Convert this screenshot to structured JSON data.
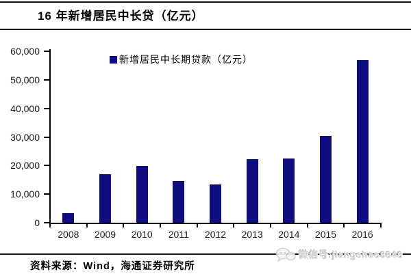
{
  "title": "16 年新增居民中长贷（亿元）",
  "legend": {
    "label": "新增居民中长期贷款（亿元）"
  },
  "source": "资料来源：Wind，海通证券研究所",
  "watermark": {
    "icon": "wechat-icon",
    "text": "微信号:jiangchao8848"
  },
  "colors": {
    "bar": "#0d0d80",
    "axis": "#000000",
    "text": "#1a1a1a",
    "watermark": "#cccccc"
  },
  "chart_data": {
    "type": "bar",
    "title": "16 年新增居民中长贷（亿元）",
    "legend_entries": [
      "新增居民中长期贷款（亿元）"
    ],
    "legend_position": "top-left-inside",
    "categories": [
      "2008",
      "2009",
      "2010",
      "2011",
      "2012",
      "2013",
      "2014",
      "2015",
      "2016"
    ],
    "values": [
      3400,
      17000,
      19800,
      14600,
      13300,
      22300,
      22400,
      30300,
      56800
    ],
    "xlabel": "",
    "ylabel": "",
    "ylim": [
      0,
      60000
    ],
    "y_ticks": [
      0,
      10000,
      20000,
      30000,
      40000,
      50000,
      60000
    ],
    "y_tick_labels": [
      "0",
      "10,000",
      "20,000",
      "30,000",
      "40,000",
      "50,000",
      "60,000"
    ],
    "grid": false
  }
}
